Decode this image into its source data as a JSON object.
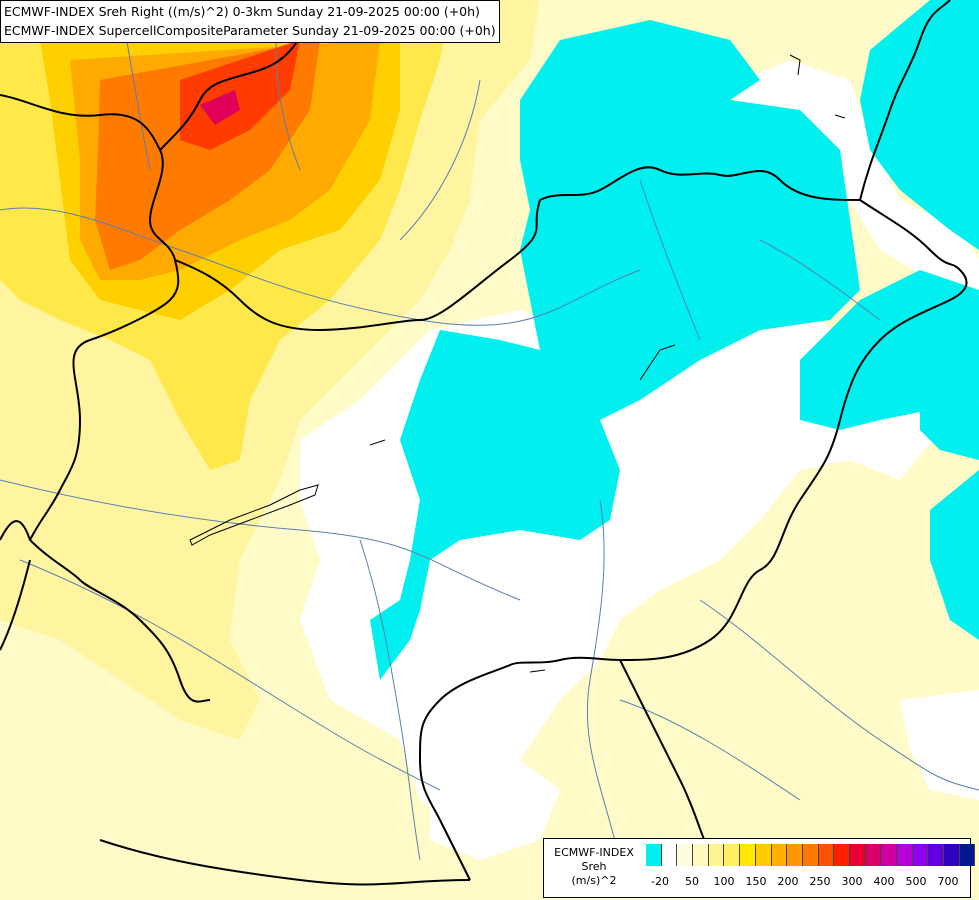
{
  "title": {
    "line1": "ECMWF-INDEX Sreh Right ((m/s)^2) 0-3km Sunday 21-09-2025 00:00 (+0h)",
    "line2": "ECMWF-INDEX SupercellCompositeParameter Sunday 21-09-2025 00:00 (+0h)"
  },
  "legend": {
    "line1": "ECMWF-INDEX",
    "line2": "Sreh",
    "line3": "(m/s)^2",
    "colors": [
      "#00f0f0",
      "#ffffff",
      "#fffde0",
      "#fff9c0",
      "#fff48f",
      "#fff060",
      "#ffe800",
      "#ffcc00",
      "#ffb000",
      "#ff9800",
      "#ff7800",
      "#ff5000",
      "#ff2000",
      "#e80030",
      "#d8006a",
      "#d000a0",
      "#b800d8",
      "#9000f0",
      "#6000e0",
      "#3000c0",
      "#001890"
    ],
    "ticks": [
      "-20",
      "50",
      "100",
      "150",
      "200",
      "250",
      "300",
      "400",
      "500",
      "700"
    ]
  },
  "colors": {
    "cyan": "#00f0f0",
    "pale_yellow": "#fffbc8",
    "light_yellow": "#fff5a0",
    "yellow": "#ffe94a",
    "gold": "#ffd000",
    "orange": "#ffaa00",
    "dark_orange": "#ff7b00",
    "red": "#ff3b00",
    "magenta": "#e0005a",
    "border": "#000000",
    "river": "#5a7fb0"
  }
}
